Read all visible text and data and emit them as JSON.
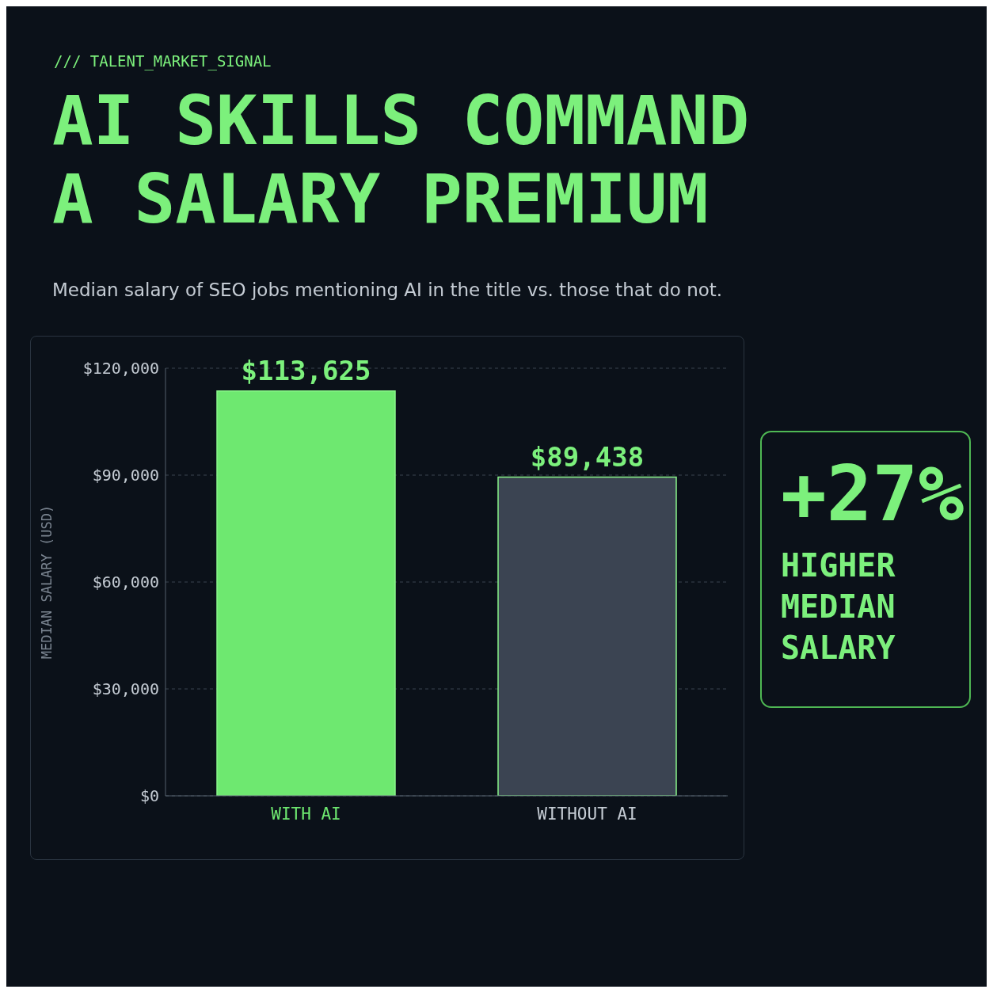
{
  "chart_data": {
    "type": "bar",
    "title": "AI SKILLS COMMAND A SALARY PREMIUM",
    "subtitle": "Median salary of SEO jobs mentioning AI in the title vs. those that do not.",
    "ylabel": "MEDIAN SALARY (USD)",
    "categories": [
      "WITH AI",
      "WITHOUT AI"
    ],
    "values": [
      113625,
      89438
    ],
    "colors": [
      "#6ee870",
      "#3b4452"
    ],
    "value_labels": [
      "$113,625",
      "$89,438"
    ],
    "ylim": [
      0,
      120000
    ],
    "yticks": [
      {
        "value": 0,
        "label": "$0"
      },
      {
        "value": 30000,
        "label": "$30,000"
      },
      {
        "value": 60000,
        "label": "$60,000"
      },
      {
        "value": 90000,
        "label": "$90,000"
      },
      {
        "value": 120000,
        "label": "$120,000"
      }
    ],
    "grid": "y",
    "annotations": [
      "/// TALENT_MARKET_SIGNAL",
      "+27%",
      "HIGHER MEDIAN SALARY"
    ]
  }
}
